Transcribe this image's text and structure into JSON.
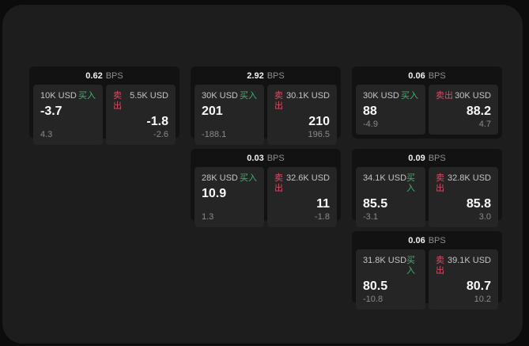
{
  "labels": {
    "bps": "BPS",
    "buy": "买入",
    "sell": "卖出"
  },
  "colors": {
    "outer_bg": "#0c0c0c",
    "window_bg": "#1d1d1d",
    "card_bg": "#121212",
    "panel_bg": "#252525",
    "buy_green": "#3cb46e",
    "sell_red": "#d44f66"
  },
  "cards": [
    {
      "bps": "0.62",
      "buy": {
        "amount": "10K USD",
        "value": "-3.7",
        "sub": "4.3"
      },
      "sell": {
        "amount": "5.5K USD",
        "value": "-1.8",
        "sub": "-2.6"
      }
    },
    {
      "bps": "2.92",
      "buy": {
        "amount": "30K USD",
        "value": "201",
        "sub": "-188.1"
      },
      "sell": {
        "amount": "30.1K USD",
        "value": "210",
        "sub": "196.5"
      }
    },
    {
      "bps": "0.06",
      "buy": {
        "amount": "30K USD",
        "value": "88",
        "sub": "-4.9"
      },
      "sell": {
        "amount": "30K USD",
        "value": "88.2",
        "sub": "4.7"
      }
    },
    {
      "bps": "0.03",
      "buy": {
        "amount": "28K USD",
        "value": "10.9",
        "sub": "1.3"
      },
      "sell": {
        "amount": "32.6K USD",
        "value": "11",
        "sub": "-1.8"
      }
    },
    {
      "bps": "0.09",
      "buy": {
        "amount": "34.1K USD",
        "value": "85.5",
        "sub": "-3.1"
      },
      "sell": {
        "amount": "32.8K USD",
        "value": "85.8",
        "sub": "3.0"
      }
    },
    {
      "bps": "0.06",
      "buy": {
        "amount": "31.8K USD",
        "value": "80.5",
        "sub": "-10.8"
      },
      "sell": {
        "amount": "39.1K USD",
        "value": "80.7",
        "sub": "10.2"
      }
    }
  ]
}
